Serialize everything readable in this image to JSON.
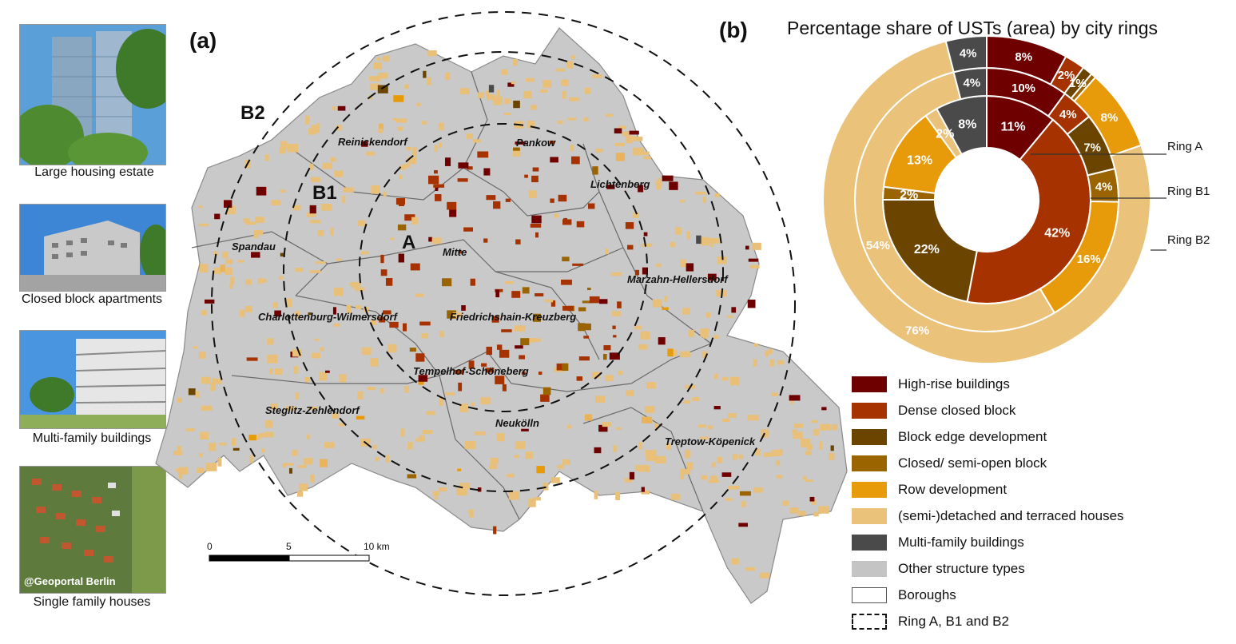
{
  "photos": [
    {
      "caption": "Large housing estate"
    },
    {
      "caption": "Closed block apartments"
    },
    {
      "caption": "Multi-family buildings"
    },
    {
      "caption": "Single family houses",
      "watermark": "@Geoportal Berlin"
    }
  ],
  "map": {
    "panel_label": "(a)",
    "ring_labels": [
      "A",
      "B1",
      "B2"
    ],
    "boroughs": [
      "Reinickendorf",
      "Pankow",
      "Lichtenberg",
      "Spandau",
      "Mitte",
      "Marzahn-Hellersdorf",
      "Charlottenburg-Wilmersdorf",
      "Friedrichshain-Kreuzberg",
      "Tempelhof-Schöneberg",
      "Steglitz-Zehlendorf",
      "Neukölln",
      "Treptow-Köpenick"
    ],
    "scale": {
      "ticks": [
        "0",
        "5",
        "10 km"
      ]
    }
  },
  "chart_data": {
    "type": "pie",
    "subtype": "nested-donut",
    "panel_label": "(b)",
    "title": "Percentage share of USTs (area) by city rings",
    "categories": [
      "High-rise buildings",
      "Dense closed block",
      "Block edge development",
      "Closed/ semi-open block",
      "Row development",
      "(semi-)detached and terraced houses",
      "Multi-family buildings"
    ],
    "colors": [
      "#6e0000",
      "#a63200",
      "#6b4500",
      "#9a6400",
      "#e89b0a",
      "#eac27a",
      "#4a4a4a"
    ],
    "series": [
      {
        "name": "Ring A",
        "values": [
          11,
          42,
          22,
          2,
          13,
          2,
          8
        ],
        "labels": [
          "11%",
          "42%",
          "22%",
          "2%",
          "13%",
          "2%",
          "8%"
        ]
      },
      {
        "name": "Ring B1",
        "values": [
          10,
          4,
          7,
          4,
          16,
          54,
          4
        ],
        "labels": [
          "10%",
          "4%",
          "7%",
          "4%",
          "16%",
          "54%",
          "4%"
        ]
      },
      {
        "name": "Ring B2",
        "values": [
          8,
          2,
          1,
          0.5,
          8,
          76,
          4
        ],
        "labels": [
          "8%",
          "2%",
          "1%",
          "",
          "8%",
          "76%",
          "4%"
        ]
      }
    ],
    "ring_labels": [
      "Ring A",
      "Ring B1",
      "Ring B2"
    ]
  },
  "legend": {
    "items": [
      {
        "label": "High-rise buildings",
        "color": "#6e0000",
        "style": "fill"
      },
      {
        "label": "Dense closed block",
        "color": "#a63200",
        "style": "fill"
      },
      {
        "label": "Block edge development",
        "color": "#6b4500",
        "style": "fill"
      },
      {
        "label": "Closed/ semi-open block",
        "color": "#9a6400",
        "style": "fill"
      },
      {
        "label": "Row development",
        "color": "#e89b0a",
        "style": "fill"
      },
      {
        "label": "(semi-)detached and terraced houses",
        "color": "#eac27a",
        "style": "fill"
      },
      {
        "label": "Multi-family buildings",
        "color": "#4a4a4a",
        "style": "fill"
      },
      {
        "label": "Other structure types",
        "color": "#c4c4c4",
        "style": "fill"
      },
      {
        "label": "Boroughs",
        "color": "#555555",
        "style": "outline"
      },
      {
        "label": "Ring A, B1 and B2",
        "color": "#111111",
        "style": "dashed"
      }
    ]
  }
}
